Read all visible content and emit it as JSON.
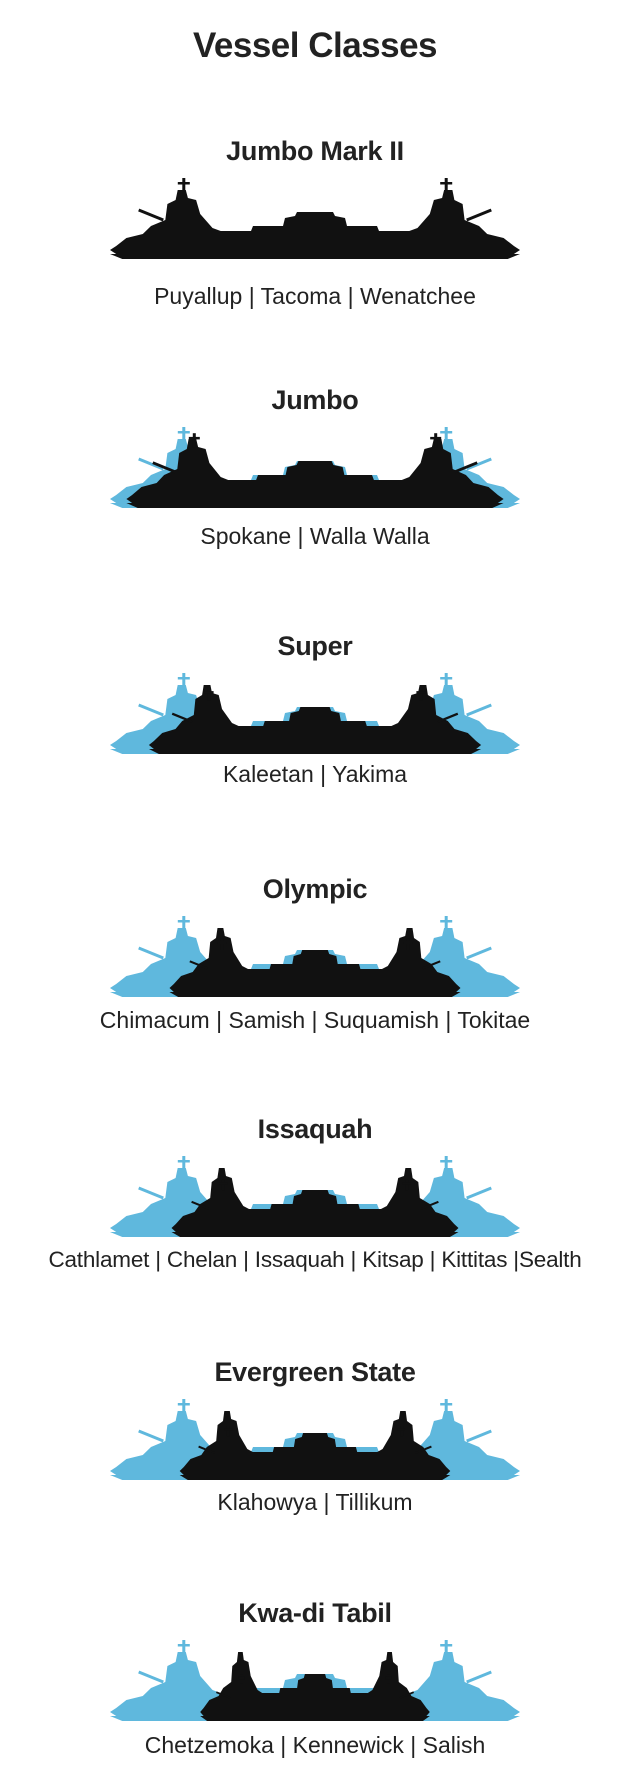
{
  "page_title": "Vessel Classes",
  "colors": {
    "silhouette": "#111111",
    "reference": "#5fb8dd",
    "text": "#222222"
  },
  "classes": [
    {
      "name": "Jumbo Mark II",
      "vessels": "Puyallup | Tacoma | Wenatchee",
      "scale": 1.0,
      "show_reference": false
    },
    {
      "name": "Jumbo",
      "vessels": "Spokane | Walla Walla",
      "scale": 0.92,
      "show_reference": true
    },
    {
      "name": "Super",
      "vessels": "Kaleetan | Yakima",
      "scale": 0.81,
      "show_reference": true
    },
    {
      "name": "Olympic",
      "vessels": "Chimacum | Samish | Suquamish | Tokitae",
      "scale": 0.71,
      "show_reference": true
    },
    {
      "name": "Issaquah",
      "vessels": "Cathlamet | Chelan | Issaquah | Kitsap | Kittitas |Sealth",
      "scale": 0.7,
      "show_reference": true
    },
    {
      "name": "Evergreen State",
      "vessels": "Klahowya | Tillikum",
      "scale": 0.66,
      "show_reference": true
    },
    {
      "name": "Kwa-di Tabil",
      "vessels": "Chetzemoka | Kennewick | Salish",
      "scale": 0.56,
      "show_reference": true
    }
  ]
}
